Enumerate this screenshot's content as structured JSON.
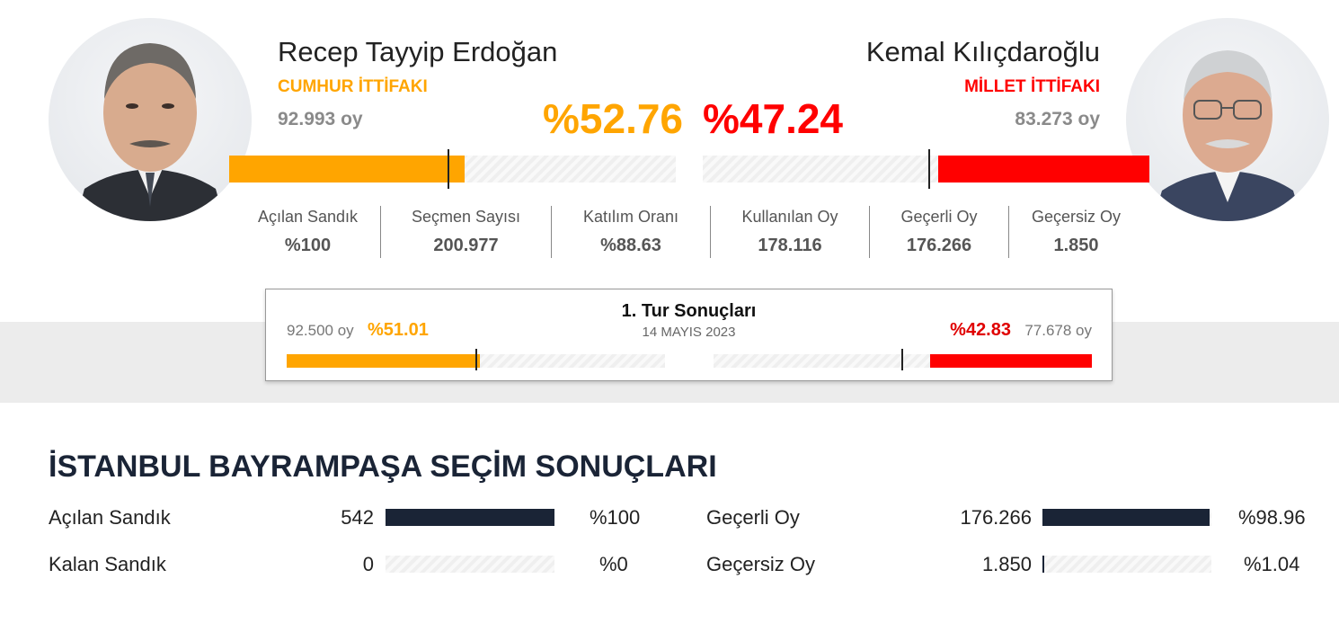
{
  "colors": {
    "erdogan": "#ffa500",
    "kilicdaroglu": "#ff0000",
    "dark": "#1a2436"
  },
  "erdogan": {
    "name": "Recep Tayyip Erdoğan",
    "party": "CUMHUR İTTİFAKI",
    "votes": "92.993 oy",
    "pct_label": "%52.76",
    "share": 0.5276
  },
  "kilicdaroglu": {
    "name": "Kemal Kılıçdaroğlu",
    "party": "MİLLET İTTİFAKI",
    "votes": "83.273 oy",
    "pct_label": "%47.24",
    "share": 0.4724
  },
  "stats": [
    {
      "label": "Açılan Sandık",
      "value": "%100"
    },
    {
      "label": "Seçmen Sayısı",
      "value": "200.977"
    },
    {
      "label": "Katılım Oranı",
      "value": "%88.63"
    },
    {
      "label": "Kullanılan Oy",
      "value": "178.116"
    },
    {
      "label": "Geçerli Oy",
      "value": "176.266"
    },
    {
      "label": "Geçersiz Oy",
      "value": "1.850"
    }
  ],
  "round1": {
    "title": "1. Tur Sonuçları",
    "date": "14 MAYIS 2023",
    "left_votes": "92.500 oy",
    "left_pct": "%51.01",
    "left_share": 0.5101,
    "right_pct": "%42.83",
    "right_votes": "77.678 oy",
    "right_share": 0.4283
  },
  "section": {
    "title": "İSTANBUL BAYRAMPAŞA SEÇİM SONUÇLARI",
    "rows": [
      {
        "label": "Açılan Sandık",
        "number": "542",
        "pct": "%100",
        "fraction": 1.0
      },
      {
        "label": "Kalan Sandık",
        "number": "0",
        "pct": "%0",
        "fraction": 0.0
      },
      {
        "label": "Geçerli Oy",
        "number": "176.266",
        "pct": "%98.96",
        "fraction": 0.9896
      },
      {
        "label": "Geçersiz Oy",
        "number": "1.850",
        "pct": "%1.04",
        "fraction": 0.0104
      }
    ]
  }
}
